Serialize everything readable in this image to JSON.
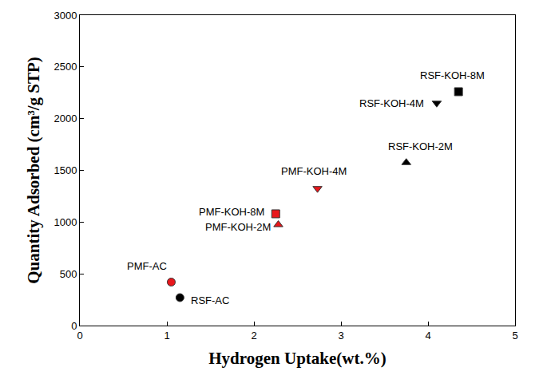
{
  "chart_data": {
    "type": "scatter",
    "x_label": "Hydrogen Uptake(wt.%)",
    "y_label": "Quantity Adsorbed (cm³/g STP)",
    "labels": [
      "PMF-AC",
      "RSF-AC",
      "PMF-KOH-2M",
      "PMF-KOH-8M",
      "PMF-KOH-4M",
      "RSF-KOH-2M",
      "RSF-KOH-4M",
      "RSF-KOH-8M"
    ],
    "x": [
      1.05,
      1.15,
      2.28,
      2.25,
      2.73,
      3.75,
      4.1,
      4.35
    ],
    "values": [
      420,
      270,
      975,
      1080,
      1325,
      1575,
      2150,
      2260
    ],
    "colors": [
      "#e8171c",
      "#000000",
      "#e8171c",
      "#e8171c",
      "#e8171c",
      "#000000",
      "#000000",
      "#000000"
    ],
    "markers": [
      "circle",
      "circle",
      "triangle-up",
      "square",
      "triangle-down",
      "triangle-up",
      "triangle-down",
      "square"
    ],
    "xlim": [
      0,
      5
    ],
    "xticks": [
      0,
      1,
      2,
      3,
      4,
      5
    ],
    "ylim": [
      0,
      3000
    ],
    "yticks": [
      0,
      500,
      1000,
      1500,
      2000,
      2500,
      3000
    ],
    "grid": false
  }
}
